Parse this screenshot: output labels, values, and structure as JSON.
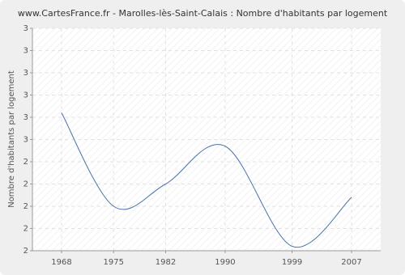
{
  "chart_data": {
    "type": "line",
    "title": "www.CartesFrance.fr - Marolles-lès-Saint-Calais : Nombre d'habitants par logement",
    "y_label": "Nombre d'habitants par logement",
    "x": [
      1968,
      1975,
      1982,
      1990,
      1999,
      2007
    ],
    "series": [
      {
        "name": "Nombre d'habitants par logement",
        "color": "#4a74a8",
        "values": [
          2.62,
          2.2,
          2.3,
          2.47,
          2.02,
          2.24
        ]
      }
    ],
    "xlim": [
      1964.08,
      2010.92
    ],
    "xticks": [
      1968,
      1975,
      1982,
      1990,
      1999,
      2007
    ],
    "ylim": [
      2,
      3
    ],
    "yticks": [
      2,
      {
        "value": 2.1,
        "label": "2"
      },
      {
        "value": 2.2,
        "label": "2"
      },
      {
        "value": 2.3,
        "label": "2"
      },
      {
        "value": 2.4,
        "label": "2"
      },
      {
        "value": 2.5,
        "label": "3"
      },
      {
        "value": 2.6,
        "label": "3"
      },
      {
        "value": 2.7,
        "label": "3"
      },
      {
        "value": 2.8,
        "label": "3"
      },
      {
        "value": 2.9,
        "label": "3"
      },
      3
    ],
    "grid": true
  }
}
